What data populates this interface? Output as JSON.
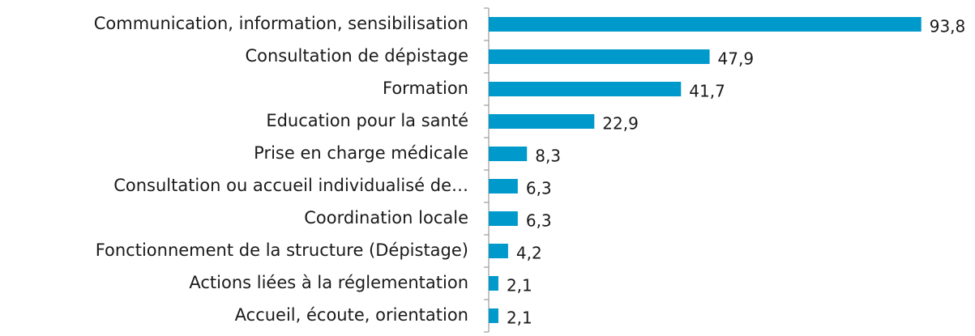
{
  "chart_data": {
    "type": "bar",
    "orientation": "horizontal",
    "categories": [
      "Communication, information, sensibilisation",
      "Consultation de dépistage",
      "Formation",
      "Education pour la santé",
      "Prise en charge médicale",
      "Consultation ou accueil individualisé de…",
      "Coordination locale",
      "Fonctionnement de la structure (Dépistage)",
      "Actions liées à la réglementation",
      "Accueil, écoute, orientation"
    ],
    "values": [
      93.8,
      47.9,
      41.7,
      22.9,
      8.3,
      6.3,
      6.3,
      4.2,
      2.1,
      2.1
    ],
    "value_labels": [
      "93,8",
      "47,9",
      "41,7",
      "22,9",
      "8,3",
      "6,3",
      "6,3",
      "4,2",
      "2,1",
      "2,1"
    ],
    "color": "#0099cc",
    "xlim": [
      0,
      100
    ]
  }
}
